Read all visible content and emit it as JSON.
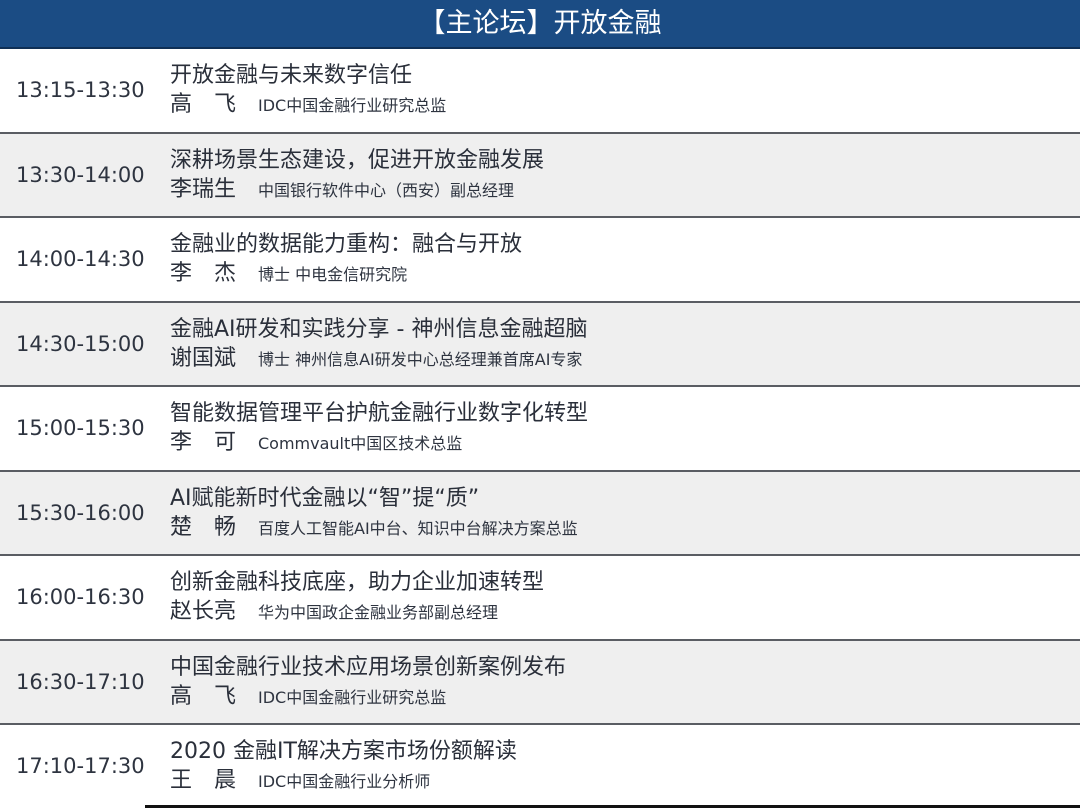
{
  "header": {
    "title": "【主论坛】开放金融"
  },
  "sessions": [
    {
      "time": "13:15-13:30",
      "title": "开放金融与未来数字信任",
      "speaker": "高　飞",
      "role": "IDC中国金融行业研究总监"
    },
    {
      "time": "13:30-14:00",
      "title": "深耕场景生态建设，促进开放金融发展",
      "speaker": "李瑞生",
      "role": "中国银行软件中心（西安）副总经理"
    },
    {
      "time": "14:00-14:30",
      "title": "金融业的数据能力重构：融合与开放",
      "speaker": "李　杰",
      "role": "博士 中电金信研究院"
    },
    {
      "time": "14:30-15:00",
      "title": "金融AI研发和实践分享 - 神州信息金融超脑",
      "speaker": "谢国斌",
      "role": "博士 神州信息AI研发中心总经理兼首席AI专家"
    },
    {
      "time": "15:00-15:30",
      "title": "智能数据管理平台护航金融行业数字化转型",
      "speaker": "李　可",
      "role": "Commvault中国区技术总监"
    },
    {
      "time": "15:30-16:00",
      "title": "AI赋能新时代金融以“智”提“质”",
      "speaker": "楚　畅",
      "role": "百度人工智能AI中台、知识中台解决方案总监"
    },
    {
      "time": "16:00-16:30",
      "title": "创新金融科技底座，助力企业加速转型",
      "speaker": "赵长亮",
      "role": "华为中国政企金融业务部副总经理"
    },
    {
      "time": "16:30-17:10",
      "title": "中国金融行业技术应用场景创新案例发布",
      "speaker": "高　飞",
      "role": "IDC中国金融行业研究总监"
    },
    {
      "time": "17:10-17:30",
      "title": "2020 金融IT解决方案市场份额解读",
      "speaker": "王　晨",
      "role": "IDC中国金融行业分析师"
    }
  ],
  "colors": {
    "header_bg": "#1b4c84",
    "alt_row_bg": "#efefef"
  }
}
